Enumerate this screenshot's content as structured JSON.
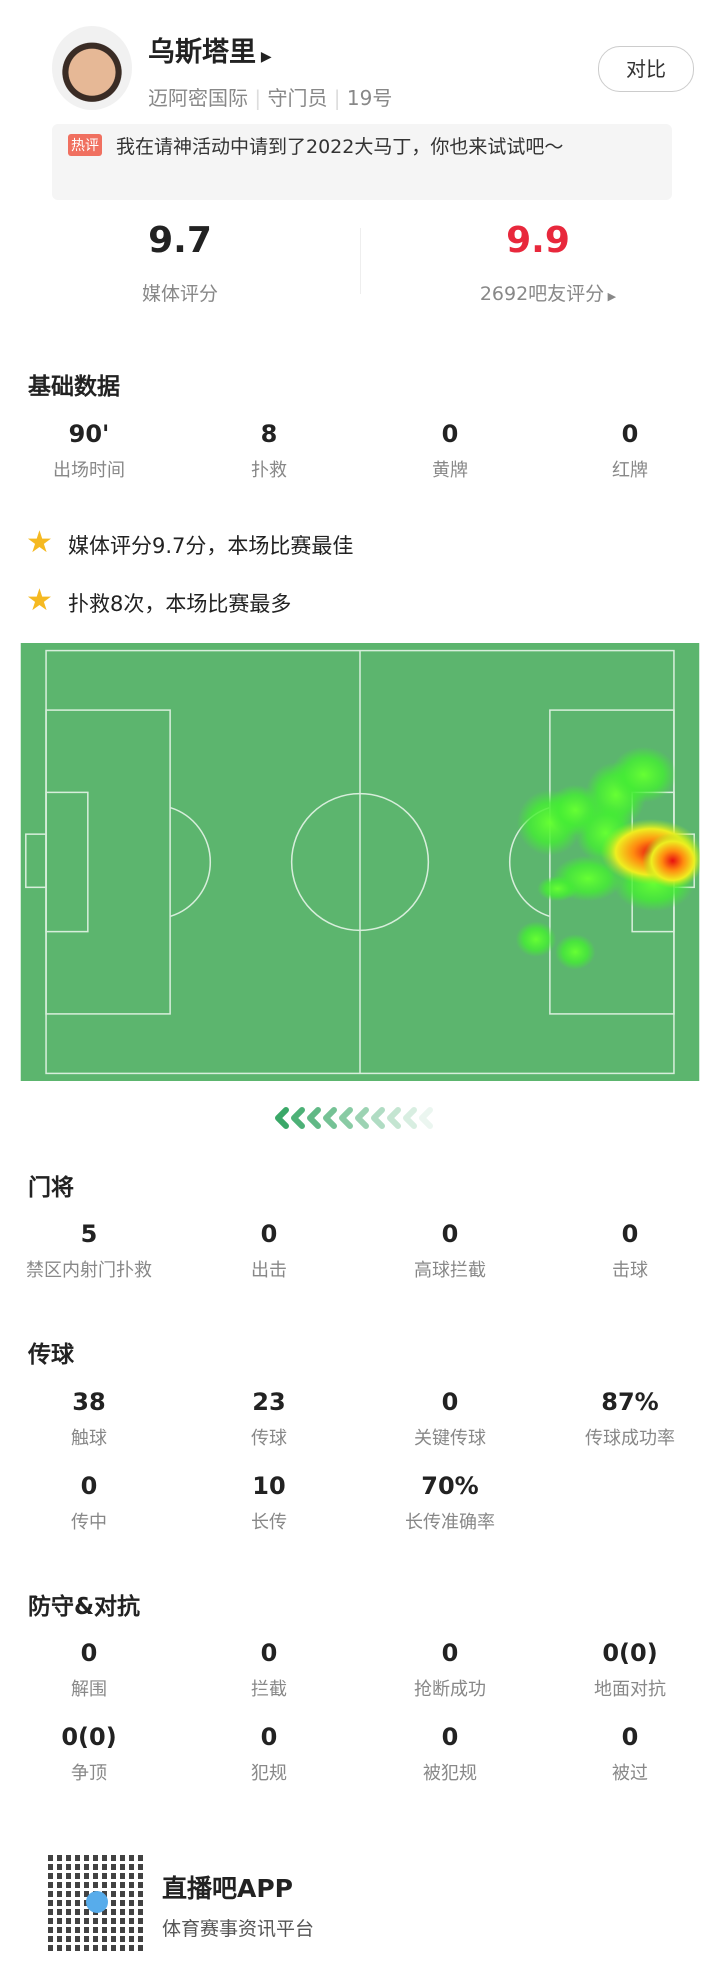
{
  "header": {
    "name": "乌斯塔里",
    "club": "迈阿密国际",
    "position": "守门员",
    "number": "19号",
    "compare_button": "对比"
  },
  "hot_comment": {
    "tag": "热评",
    "text": "我在请神活动中请到了2022大马丁，你也来试试吧～"
  },
  "ratings": {
    "media_score": "9.7",
    "media_label": "媒体评分",
    "fan_score": "9.9",
    "fan_label": "2692吧友评分"
  },
  "basic": {
    "title": "基础数据",
    "items": [
      {
        "value": "90'",
        "label": "出场时间"
      },
      {
        "value": "8",
        "label": "扑救"
      },
      {
        "value": "0",
        "label": "黄牌"
      },
      {
        "value": "0",
        "label": "红牌"
      }
    ]
  },
  "highlights": [
    "媒体评分9.7分，本场比赛最佳",
    "扑救8次，本场比赛最多"
  ],
  "sections": [
    {
      "title": "门将",
      "items": [
        {
          "value": "5",
          "label": "禁区内射门扑救"
        },
        {
          "value": "0",
          "label": "出击"
        },
        {
          "value": "0",
          "label": "高球拦截"
        },
        {
          "value": "0",
          "label": "击球"
        }
      ]
    },
    {
      "title": "传球",
      "items": [
        {
          "value": "38",
          "label": "触球"
        },
        {
          "value": "23",
          "label": "传球"
        },
        {
          "value": "0",
          "label": "关键传球"
        },
        {
          "value": "87%",
          "label": "传球成功率"
        },
        {
          "value": "0",
          "label": "传中"
        },
        {
          "value": "10",
          "label": "长传"
        },
        {
          "value": "70%",
          "label": "长传准确率"
        }
      ]
    },
    {
      "title": "防守&对抗",
      "items": [
        {
          "value": "0",
          "label": "解围"
        },
        {
          "value": "0",
          "label": "拦截"
        },
        {
          "value": "0",
          "label": "抢断成功"
        },
        {
          "value": "0(0)",
          "label": "地面对抗"
        },
        {
          "value": "0(0)",
          "label": "争顶"
        },
        {
          "value": "0",
          "label": "犯规"
        },
        {
          "value": "0",
          "label": "被犯规"
        },
        {
          "value": "0",
          "label": "被过"
        }
      ]
    }
  ],
  "footer": {
    "app_name": "直播吧APP",
    "slogan": "体育赛事资讯平台"
  }
}
